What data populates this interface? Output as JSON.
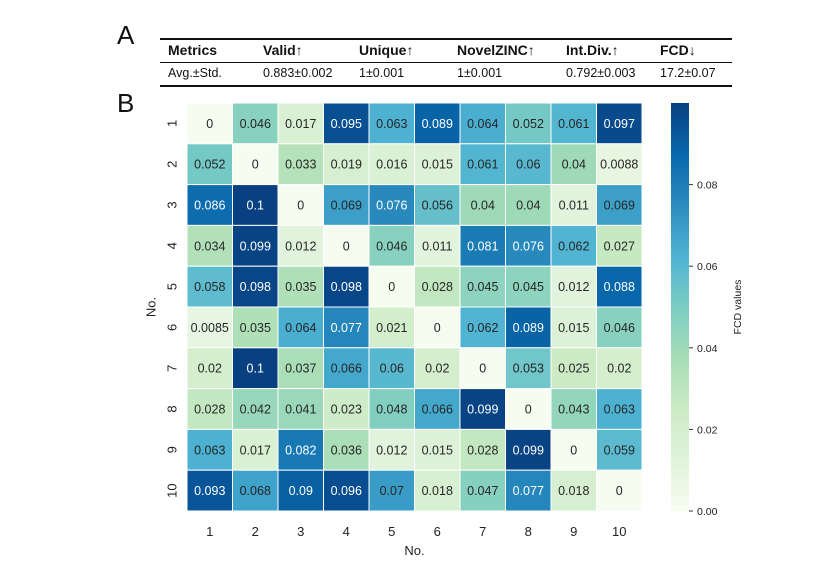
{
  "panels": {
    "a": "A",
    "b": "B"
  },
  "metrics_table": {
    "headers": [
      "Metrics",
      "Valid↑",
      "Unique↑",
      "NovelZINC↑",
      "Int.Div.↑",
      "FCD↓"
    ],
    "row": [
      "Avg.±Std.",
      "0.883±0.002",
      "1±0.001",
      "1±0.001",
      "0.792±0.003",
      "17.2±0.07"
    ]
  },
  "chart_data": {
    "type": "heatmap",
    "title": "",
    "xlabel": "No.",
    "ylabel": "No.",
    "x_categories": [
      "1",
      "2",
      "3",
      "4",
      "5",
      "6",
      "7",
      "8",
      "9",
      "10"
    ],
    "y_categories": [
      "1",
      "2",
      "3",
      "4",
      "5",
      "6",
      "7",
      "8",
      "9",
      "10"
    ],
    "cells": [
      [
        "0",
        "0.046",
        "0.017",
        "0.095",
        "0.063",
        "0.089",
        "0.064",
        "0.052",
        "0.061",
        "0.097"
      ],
      [
        "0.052",
        "0",
        "0.033",
        "0.019",
        "0.016",
        "0.015",
        "0.061",
        "0.06",
        "0.04",
        "0.0088"
      ],
      [
        "0.086",
        "0.1",
        "0",
        "0.069",
        "0.076",
        "0.056",
        "0.04",
        "0.04",
        "0.011",
        "0.069"
      ],
      [
        "0.034",
        "0.099",
        "0.012",
        "0",
        "0.046",
        "0.011",
        "0.081",
        "0.076",
        "0.062",
        "0.027"
      ],
      [
        "0.058",
        "0.098",
        "0.035",
        "0.098",
        "0",
        "0.028",
        "0.045",
        "0.045",
        "0.012",
        "0.088"
      ],
      [
        "0.0085",
        "0.035",
        "0.064",
        "0.077",
        "0.021",
        "0",
        "0.062",
        "0.089",
        "0.015",
        "0.046"
      ],
      [
        "0.02",
        "0.1",
        "0.037",
        "0.066",
        "0.06",
        "0.02",
        "0",
        "0.053",
        "0.025",
        "0.02"
      ],
      [
        "0.028",
        "0.042",
        "0.041",
        "0.023",
        "0.048",
        "0.066",
        "0.099",
        "0",
        "0.043",
        "0.063"
      ],
      [
        "0.063",
        "0.017",
        "0.082",
        "0.036",
        "0.012",
        "0.015",
        "0.028",
        "0.099",
        "0",
        "0.059"
      ],
      [
        "0.093",
        "0.068",
        "0.09",
        "0.096",
        "0.07",
        "0.018",
        "0.047",
        "0.077",
        "0.018",
        "0"
      ]
    ],
    "colorbar": {
      "label": "FCD values",
      "range": [
        0,
        0.1
      ],
      "ticks": [
        0.0,
        0.02,
        0.04,
        0.06,
        0.08
      ],
      "tick_labels": [
        "0.00",
        "0.02",
        "0.04",
        "0.06",
        "0.08"
      ],
      "colormap": "GnBu",
      "colors": [
        "#f7fcf0",
        "#e0f3db",
        "#ccebc5",
        "#a8ddb5",
        "#7bccc4",
        "#4eb3d3",
        "#2b8cbe",
        "#0868ac",
        "#084081"
      ]
    }
  }
}
